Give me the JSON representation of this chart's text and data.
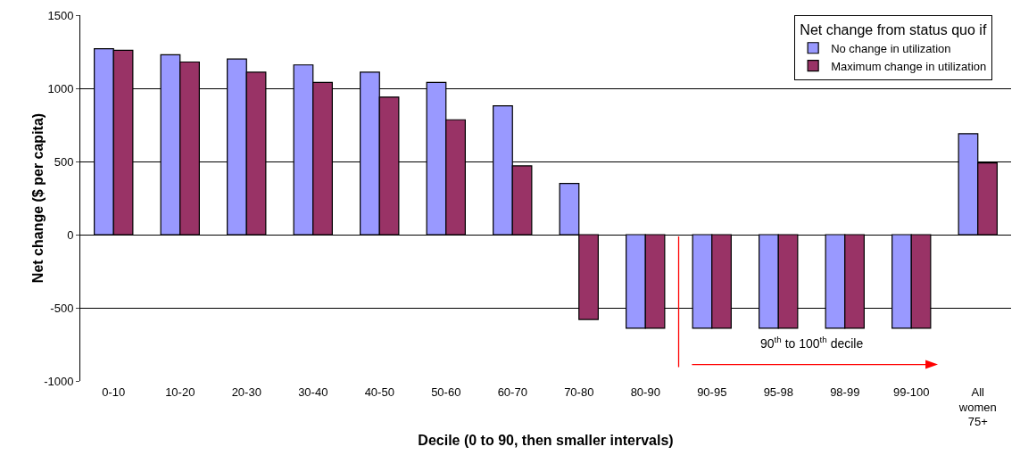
{
  "chart_data": {
    "type": "bar",
    "xlabel": "Decile (0 to 90, then smaller intervals)",
    "ylabel": "Net change ($ per capita)",
    "legend_title": "Net change from status quo if",
    "categories": [
      "0-10",
      "10-20",
      "20-30",
      "30-40",
      "40-50",
      "50-60",
      "60-70",
      "70-80",
      "80-90",
      "90-95",
      "95-98",
      "98-99",
      "99-100",
      "All women 75+"
    ],
    "series": [
      {
        "name": "No change in utilization",
        "color": "#9999ff",
        "values": [
          1270,
          1230,
          1200,
          1160,
          1110,
          1040,
          880,
          350,
          -640,
          -640,
          -640,
          -640,
          -640,
          690
        ]
      },
      {
        "name": "Maximum change in utilization",
        "color": "#993366",
        "values": [
          1260,
          1180,
          1110,
          1040,
          940,
          785,
          470,
          -580,
          -640,
          -640,
          -640,
          -640,
          -640,
          490
        ]
      }
    ],
    "ylim": [
      -1000,
      1500
    ],
    "yticks": [
      -1000,
      -500,
      0,
      500,
      1000,
      1500
    ],
    "grid": "y",
    "legend": "top right",
    "annotations": [
      "90$^{th}$ to 100$^{th}$ decile"
    ]
  }
}
